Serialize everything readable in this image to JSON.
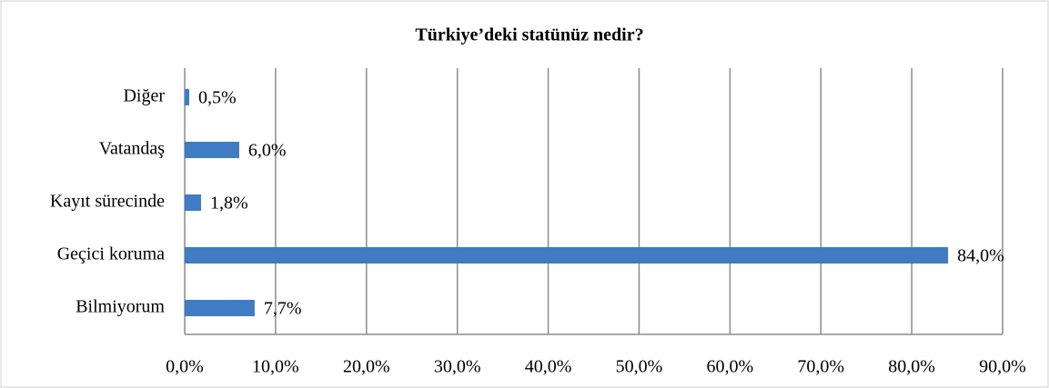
{
  "chart_data": {
    "type": "barh",
    "title": "Türkiye’deki statünüz nedir?",
    "categories": [
      "Diğer",
      "Vatandaş",
      "Kayıt sürecinde",
      "Geçici koruma",
      "Bilmiyorum"
    ],
    "values": [
      0.5,
      6.0,
      1.8,
      84.0,
      7.7
    ],
    "value_labels": [
      "0,5%",
      "6,0%",
      "1,8%",
      "84,0%",
      "7,7%"
    ],
    "color": "#3f7cc4",
    "xlim": [
      0,
      90
    ],
    "xticks": [
      {
        "value": 0,
        "label": "0,0%"
      },
      {
        "value": 10,
        "label": "10,0%"
      },
      {
        "value": 20,
        "label": "20,0%"
      },
      {
        "value": 30,
        "label": "30,0%"
      },
      {
        "value": 40,
        "label": "40,0%"
      },
      {
        "value": 50,
        "label": "50,0%"
      },
      {
        "value": 60,
        "label": "60,0%"
      },
      {
        "value": 70,
        "label": "70,0%"
      },
      {
        "value": 80,
        "label": "80,0%"
      },
      {
        "value": 90,
        "label": "90,0%"
      }
    ],
    "grid": true
  }
}
